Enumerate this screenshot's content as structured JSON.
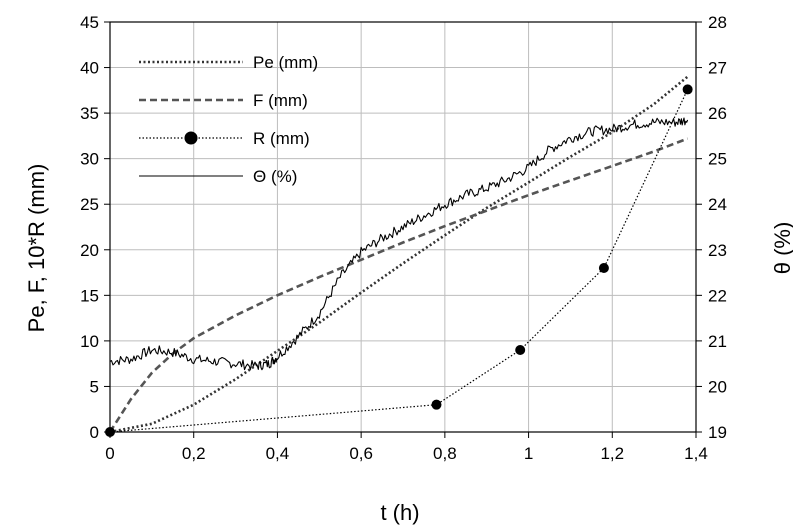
{
  "chart_data": {
    "type": "line",
    "xlabel": "t (h)",
    "ylabel_left": "Pe, F, 10*R (mm)",
    "ylabel_right": "θ (%)",
    "xlim": [
      0,
      1.4
    ],
    "ylim_left": [
      0,
      45
    ],
    "ylim_right": [
      19,
      28
    ],
    "x_ticks": [
      "0",
      "0,2",
      "0,4",
      "0,6",
      "0,8",
      "1",
      "1,2",
      "1,4"
    ],
    "x_tick_values": [
      0,
      0.2,
      0.4,
      0.6,
      0.8,
      1.0,
      1.2,
      1.4
    ],
    "y_left_ticks": [
      "0",
      "5",
      "10",
      "15",
      "20",
      "25",
      "30",
      "35",
      "40",
      "45"
    ],
    "y_left_tick_values": [
      0,
      5,
      10,
      15,
      20,
      25,
      30,
      35,
      40,
      45
    ],
    "y_right_ticks": [
      "19",
      "20",
      "21",
      "22",
      "23",
      "24",
      "25",
      "26",
      "27",
      "28"
    ],
    "y_right_tick_values": [
      19,
      20,
      21,
      22,
      23,
      24,
      25,
      26,
      27,
      28
    ],
    "grid": true,
    "legend_position": "top-left",
    "series": [
      {
        "name": "Pe (mm)",
        "axis": "left",
        "style": "dotted",
        "color": "#333333",
        "x": [
          0,
          0.1,
          0.2,
          0.3,
          0.4,
          0.5,
          0.6,
          0.7,
          0.8,
          0.9,
          1.0,
          1.1,
          1.2,
          1.3,
          1.38
        ],
        "y": [
          0,
          0.9,
          3.0,
          5.8,
          8.9,
          12.0,
          15.3,
          18.5,
          21.6,
          24.6,
          27.4,
          30.2,
          32.9,
          36.0,
          39.0
        ]
      },
      {
        "name": "F (mm)",
        "axis": "left",
        "style": "dashed",
        "color": "#555555",
        "x": [
          0,
          0.05,
          0.1,
          0.15,
          0.2,
          0.3,
          0.4,
          0.5,
          0.6,
          0.7,
          0.8,
          0.9,
          1.0,
          1.1,
          1.2,
          1.3,
          1.38
        ],
        "y": [
          0,
          3.6,
          6.5,
          8.6,
          10.3,
          12.8,
          15.0,
          17.0,
          18.9,
          20.8,
          22.6,
          24.3,
          26.0,
          27.6,
          29.2,
          30.8,
          32.2
        ]
      },
      {
        "name": "R (mm)",
        "axis": "left",
        "style": "dotted-markers",
        "color": "#000000",
        "x": [
          0,
          0.78,
          0.98,
          1.18,
          1.38
        ],
        "y": [
          0,
          3.0,
          9.0,
          18.0,
          37.6
        ]
      },
      {
        "name": "Θ (%)",
        "axis": "right",
        "style": "solid-thin",
        "color": "#000000",
        "x": [
          0,
          0.05,
          0.1,
          0.15,
          0.2,
          0.25,
          0.3,
          0.35,
          0.38,
          0.4,
          0.45,
          0.5,
          0.55,
          0.6,
          0.65,
          0.7,
          0.75,
          0.8,
          0.85,
          0.9,
          0.95,
          1.0,
          1.05,
          1.1,
          1.15,
          1.2,
          1.25,
          1.3,
          1.35,
          1.38
        ],
        "y": [
          20.55,
          20.6,
          20.8,
          20.75,
          20.6,
          20.55,
          20.5,
          20.45,
          20.5,
          20.65,
          21.1,
          21.6,
          22.4,
          22.95,
          23.25,
          23.5,
          23.75,
          24.0,
          24.2,
          24.35,
          24.55,
          24.8,
          25.2,
          25.45,
          25.6,
          25.65,
          25.75,
          25.8,
          25.8,
          25.85
        ]
      }
    ]
  }
}
